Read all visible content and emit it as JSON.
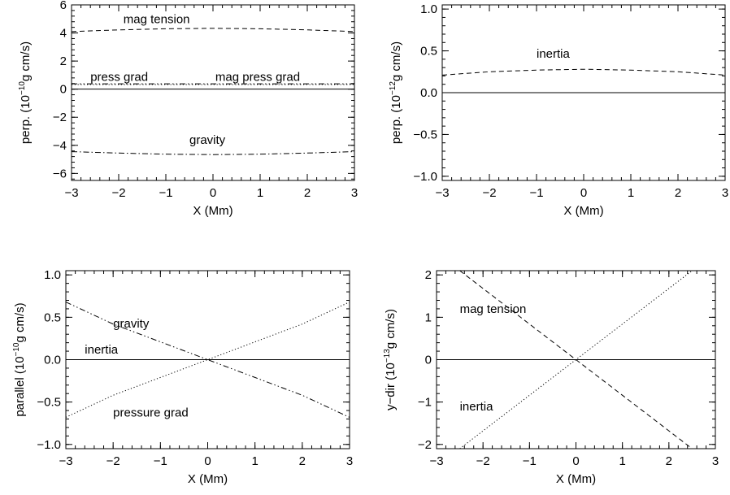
{
  "chart_data": [
    {
      "type": "line",
      "xlabel": "X (Mm)",
      "ylabel": {
        "main": "perp. (10",
        "exp": "−10",
        "tail": "g cm/s)"
      },
      "xlim": [
        -3,
        3
      ],
      "ylim": [
        -6.5,
        6
      ],
      "xticks": [
        -3,
        -2,
        -1,
        0,
        1,
        2,
        3
      ],
      "yticks": [
        -6,
        -4,
        -2,
        0,
        2,
        4,
        6
      ],
      "grid": false,
      "series": [
        {
          "name": "mag tension",
          "style": "dashed",
          "x": [
            -3,
            -2,
            -1,
            0,
            1,
            2,
            3
          ],
          "y": [
            4.1,
            4.22,
            4.3,
            4.33,
            4.3,
            4.22,
            4.1
          ]
        },
        {
          "name": "press grad",
          "style": "dotted",
          "x": [
            -3,
            -2,
            -1,
            0,
            1,
            2,
            3
          ],
          "y": [
            0.33,
            0.33,
            0.33,
            0.33,
            0.33,
            0.33,
            0.33
          ]
        },
        {
          "name": "mag press grad",
          "style": "dashdotdot",
          "x": [
            -3,
            -2,
            -1,
            0,
            1,
            2,
            3
          ],
          "y": [
            0.38,
            0.38,
            0.38,
            0.38,
            0.38,
            0.38,
            0.38
          ]
        },
        {
          "name": "",
          "style": "solid",
          "x": [
            -3,
            3
          ],
          "y": [
            0,
            0
          ]
        },
        {
          "name": "gravity",
          "style": "dashdot",
          "x": [
            -3,
            -2,
            -1,
            0,
            1,
            2,
            3
          ],
          "y": [
            -4.45,
            -4.55,
            -4.63,
            -4.66,
            -4.63,
            -4.55,
            -4.45
          ]
        }
      ],
      "annotations": [
        {
          "text": "mag tension",
          "x": -1.9,
          "y": 4.7
        },
        {
          "text": "press grad",
          "x": -2.6,
          "y": 0.6
        },
        {
          "text": "mag press grad",
          "x": 0.05,
          "y": 0.6
        },
        {
          "text": "gravity",
          "x": -0.5,
          "y": -3.9
        }
      ]
    },
    {
      "type": "line",
      "xlabel": "X (Mm)",
      "ylabel": {
        "main": "perp. (10",
        "exp": "−12",
        "tail": "g cm/s)"
      },
      "xlim": [
        -3,
        3
      ],
      "ylim": [
        -1.05,
        1.05
      ],
      "xticks": [
        -3,
        -2,
        -1,
        0,
        1,
        2,
        3
      ],
      "yticks": [
        -1.0,
        -0.5,
        0.0,
        0.5,
        1.0
      ],
      "grid": false,
      "series": [
        {
          "name": "inertia",
          "style": "dashed",
          "x": [
            -3,
            -2,
            -1,
            0,
            1,
            2,
            3
          ],
          "y": [
            0.21,
            0.25,
            0.27,
            0.28,
            0.27,
            0.25,
            0.21
          ]
        },
        {
          "name": "",
          "style": "solid",
          "x": [
            -3,
            3
          ],
          "y": [
            0,
            0
          ]
        }
      ],
      "annotations": [
        {
          "text": "inertia",
          "x": -1.0,
          "y": 0.42
        }
      ]
    },
    {
      "type": "line",
      "xlabel": "X (Mm)",
      "ylabel": {
        "main": "parallel (10",
        "exp": "−10",
        "tail": "g cm/s)"
      },
      "xlim": [
        -3,
        3
      ],
      "ylim": [
        -1.05,
        1.05
      ],
      "xticks": [
        -3,
        -2,
        -1,
        0,
        1,
        2,
        3
      ],
      "yticks": [
        -1.0,
        -0.5,
        0.0,
        0.5,
        1.0
      ],
      "grid": false,
      "series": [
        {
          "name": "gravity",
          "style": "dashdotdot",
          "x": [
            -3,
            -2,
            -1,
            0,
            1,
            2,
            3
          ],
          "y": [
            0.68,
            0.42,
            0.21,
            0.0,
            -0.21,
            -0.42,
            -0.68
          ]
        },
        {
          "name": "inertia",
          "style": "dashed",
          "x": [
            -3,
            3
          ],
          "y": [
            0.0,
            0.0
          ]
        },
        {
          "name": "",
          "style": "solid",
          "x": [
            -3,
            3
          ],
          "y": [
            0,
            0
          ]
        },
        {
          "name": "pressure grad",
          "style": "dotted",
          "x": [
            -3,
            -2,
            -1,
            0,
            1,
            2,
            3
          ],
          "y": [
            -0.68,
            -0.42,
            -0.21,
            0.0,
            0.21,
            0.42,
            0.68
          ]
        }
      ],
      "annotations": [
        {
          "text": "gravity",
          "x": -2.0,
          "y": 0.38
        },
        {
          "text": "inertia",
          "x": -2.6,
          "y": 0.07
        },
        {
          "text": "pressure grad",
          "x": -2.0,
          "y": -0.67
        }
      ]
    },
    {
      "type": "line",
      "xlabel": "X (Mm)",
      "ylabel": {
        "main": "y−dir (10",
        "exp": "−13",
        "tail": "g cm/s)"
      },
      "xlim": [
        -3,
        3
      ],
      "ylim": [
        -2.1,
        2.1
      ],
      "xticks": [
        -3,
        -2,
        -1,
        0,
        1,
        2,
        3
      ],
      "yticks": [
        -2,
        -1,
        0,
        1,
        2
      ],
      "grid": false,
      "series": [
        {
          "name": "mag tension",
          "style": "dashed",
          "x": [
            -2.5,
            0,
            2.5
          ],
          "y": [
            2.1,
            0,
            -2.1
          ]
        },
        {
          "name": "",
          "style": "solid",
          "x": [
            -3,
            3
          ],
          "y": [
            0,
            0
          ]
        },
        {
          "name": "inertia",
          "style": "dotted",
          "x": [
            -2.5,
            0,
            2.5
          ],
          "y": [
            -2.1,
            0,
            2.1
          ]
        }
      ],
      "annotations": [
        {
          "text": "mag tension",
          "x": -2.5,
          "y": 1.1
        },
        {
          "text": "inertia",
          "x": -2.5,
          "y": -1.2
        }
      ]
    }
  ]
}
